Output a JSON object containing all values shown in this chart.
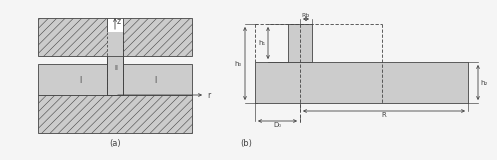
{
  "bg_color": "#f5f5f5",
  "light_gray": "#cccccc",
  "white": "#ffffff",
  "line_color": "#444444",
  "hatch_pat": "////",
  "fig_width": 4.74,
  "fig_height": 1.4,
  "label_a": "(a)",
  "label_b": "(b)",
  "label_z": "z",
  "label_r": "r",
  "label_I": "I",
  "label_II": "II",
  "label_h0": "h₀",
  "label_h1": "h₁",
  "label_h2": "h₂",
  "label_Rb": "Rb",
  "label_R": "R",
  "label_D0": "D₀"
}
